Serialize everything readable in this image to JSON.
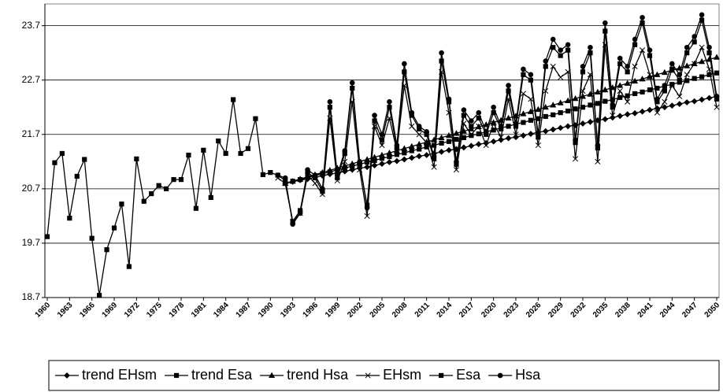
{
  "chart_data": {
    "type": "line",
    "ylim": [
      18.7,
      24.1
    ],
    "yticks": [
      18.7,
      19.7,
      20.7,
      21.7,
      22.7,
      23.7
    ],
    "grid": true,
    "legend": "bottom",
    "categories": [
      "1960",
      null,
      null,
      "1963",
      null,
      null,
      "1966",
      null,
      null,
      "1969",
      null,
      null,
      "1972",
      null,
      null,
      "1975",
      null,
      null,
      "1978",
      null,
      null,
      "1981",
      null,
      null,
      "1984",
      null,
      null,
      "1987",
      null,
      null,
      "1990",
      null,
      null,
      "1993",
      null,
      null,
      "1996",
      null,
      null,
      "1999",
      null,
      null,
      "2002",
      null,
      null,
      "2005",
      null,
      null,
      "2008",
      null,
      null,
      "2011",
      null,
      null,
      "2014",
      null,
      null,
      "2017",
      null,
      null,
      "2020",
      null,
      null,
      "2023",
      null,
      null,
      "2026",
      null,
      null,
      "2029",
      null,
      null,
      "2032",
      null,
      null,
      "2035",
      null,
      null,
      "2038",
      null,
      null,
      "2041",
      null,
      null,
      "2044",
      null,
      null,
      "2047",
      null,
      null,
      "2050"
    ],
    "series": [
      {
        "name": "trend EHsm",
        "color": "#000000",
        "marker": "diamond",
        "values": [
          null,
          null,
          null,
          null,
          null,
          null,
          null,
          null,
          null,
          null,
          null,
          null,
          null,
          null,
          null,
          null,
          null,
          null,
          null,
          null,
          null,
          null,
          null,
          null,
          null,
          null,
          null,
          null,
          null,
          null,
          null,
          null,
          20.8,
          20.83,
          20.86,
          20.88,
          20.91,
          20.94,
          20.97,
          20.99,
          21.02,
          21.05,
          21.08,
          21.1,
          21.13,
          21.16,
          21.19,
          21.21,
          21.24,
          21.27,
          21.3,
          21.32,
          21.35,
          21.38,
          21.41,
          21.43,
          21.46,
          21.49,
          21.52,
          21.54,
          21.57,
          21.6,
          21.63,
          21.65,
          21.68,
          21.71,
          21.74,
          21.76,
          21.79,
          21.82,
          21.85,
          21.87,
          21.9,
          21.93,
          21.96,
          21.98,
          22.01,
          22.04,
          22.07,
          22.09,
          22.12,
          22.15,
          22.18,
          22.2,
          22.23,
          22.26,
          22.29,
          22.31,
          22.34,
          22.37,
          22.4
        ]
      },
      {
        "name": "trend Esa",
        "color": "#000000",
        "marker": "square",
        "values": [
          null,
          null,
          null,
          null,
          null,
          null,
          null,
          null,
          null,
          null,
          null,
          null,
          null,
          null,
          null,
          null,
          null,
          null,
          null,
          null,
          null,
          null,
          null,
          null,
          null,
          null,
          null,
          null,
          null,
          null,
          null,
          null,
          20.8,
          20.84,
          20.87,
          20.91,
          20.94,
          20.98,
          21.01,
          21.05,
          21.08,
          21.12,
          21.15,
          21.19,
          21.22,
          21.26,
          21.29,
          21.33,
          21.36,
          21.4,
          21.43,
          21.47,
          21.5,
          21.54,
          21.57,
          21.61,
          21.64,
          21.68,
          21.71,
          21.75,
          21.78,
          21.82,
          21.85,
          21.89,
          21.92,
          21.96,
          21.99,
          22.03,
          22.06,
          22.1,
          22.13,
          22.17,
          22.2,
          22.24,
          22.27,
          22.31,
          22.34,
          22.38,
          22.41,
          22.45,
          22.48,
          22.52,
          22.55,
          22.59,
          22.62,
          22.66,
          22.69,
          22.73,
          22.76,
          22.8,
          22.83
        ]
      },
      {
        "name": "trend Hsa",
        "color": "#000000",
        "marker": "triangle",
        "values": [
          null,
          null,
          null,
          null,
          null,
          null,
          null,
          null,
          null,
          null,
          null,
          null,
          null,
          null,
          null,
          null,
          null,
          null,
          null,
          null,
          null,
          null,
          null,
          null,
          null,
          null,
          null,
          null,
          null,
          null,
          null,
          null,
          20.8,
          20.84,
          20.88,
          20.92,
          20.96,
          21.0,
          21.04,
          21.08,
          21.12,
          21.16,
          21.2,
          21.24,
          21.28,
          21.32,
          21.36,
          21.4,
          21.44,
          21.48,
          21.52,
          21.56,
          21.6,
          21.64,
          21.68,
          21.72,
          21.76,
          21.8,
          21.84,
          21.88,
          21.92,
          21.96,
          22.0,
          22.04,
          22.08,
          22.12,
          22.16,
          22.2,
          22.24,
          22.28,
          22.32,
          22.36,
          22.4,
          22.44,
          22.48,
          22.52,
          22.56,
          22.6,
          22.64,
          22.68,
          22.72,
          22.76,
          22.8,
          22.84,
          22.88,
          22.92,
          22.96,
          23.0,
          23.04,
          23.08,
          23.12
        ]
      },
      {
        "name": "EHsm",
        "color": "#000000",
        "marker": "x",
        "values": [
          null,
          null,
          null,
          null,
          null,
          null,
          null,
          null,
          null,
          null,
          null,
          null,
          null,
          null,
          null,
          null,
          null,
          null,
          null,
          null,
          null,
          null,
          null,
          null,
          null,
          null,
          null,
          null,
          null,
          null,
          null,
          20.9,
          20.8,
          20.1,
          20.25,
          20.95,
          20.8,
          20.6,
          22.0,
          20.85,
          21.2,
          22.3,
          21.05,
          20.2,
          21.85,
          21.5,
          22.0,
          21.4,
          22.6,
          21.85,
          21.7,
          21.55,
          21.1,
          22.85,
          22.1,
          21.05,
          21.9,
          21.7,
          21.85,
          21.5,
          21.9,
          21.65,
          22.35,
          21.7,
          22.45,
          22.35,
          21.5,
          22.5,
          22.95,
          22.75,
          22.85,
          21.25,
          22.5,
          22.8,
          21.2,
          23.35,
          22.05,
          22.5,
          22.3,
          22.95,
          23.25,
          22.8,
          22.1,
          22.3,
          22.6,
          22.4,
          22.8,
          23.0,
          23.3,
          22.9,
          22.2
        ]
      },
      {
        "name": "Esa",
        "color": "#000000",
        "marker": "square",
        "values": [
          19.82,
          21.18,
          21.35,
          20.16,
          20.93,
          21.24,
          19.79,
          18.74,
          19.58,
          19.98,
          20.42,
          19.27,
          21.25,
          20.47,
          20.61,
          20.76,
          20.7,
          20.87,
          20.87,
          21.32,
          20.34,
          21.41,
          20.54,
          21.58,
          21.35,
          22.34,
          21.35,
          21.44,
          21.99,
          20.96,
          21.0,
          20.95,
          20.85,
          20.1,
          20.3,
          21.0,
          20.9,
          20.65,
          22.2,
          20.9,
          21.35,
          22.55,
          21.15,
          20.4,
          21.95,
          21.6,
          22.2,
          21.45,
          22.85,
          22.05,
          21.8,
          21.7,
          21.25,
          23.05,
          22.3,
          21.15,
          22.05,
          21.85,
          22.0,
          21.7,
          22.1,
          21.8,
          22.5,
          21.85,
          22.8,
          22.7,
          21.65,
          22.95,
          23.3,
          23.15,
          23.25,
          21.55,
          22.85,
          23.2,
          21.45,
          23.6,
          22.2,
          23.0,
          22.85,
          23.35,
          23.75,
          23.15,
          22.3,
          22.5,
          22.9,
          22.7,
          23.2,
          23.4,
          23.8,
          23.2,
          22.35
        ]
      },
      {
        "name": "Hsa",
        "color": "#000000",
        "marker": "circle",
        "values": [
          null,
          null,
          null,
          null,
          null,
          null,
          null,
          null,
          null,
          null,
          null,
          null,
          null,
          null,
          null,
          null,
          null,
          null,
          null,
          null,
          null,
          null,
          null,
          null,
          null,
          null,
          null,
          null,
          null,
          null,
          null,
          20.95,
          20.9,
          20.05,
          20.25,
          21.05,
          20.95,
          20.7,
          22.3,
          20.95,
          21.4,
          22.65,
          21.2,
          20.35,
          22.05,
          21.7,
          22.3,
          21.5,
          23.0,
          22.1,
          21.85,
          21.75,
          21.3,
          23.2,
          22.35,
          21.2,
          22.15,
          21.95,
          22.1,
          21.75,
          22.2,
          21.85,
          22.6,
          21.9,
          22.9,
          22.8,
          21.7,
          23.05,
          23.45,
          23.25,
          23.35,
          21.6,
          22.95,
          23.3,
          21.5,
          23.75,
          22.25,
          23.1,
          22.95,
          23.45,
          23.85,
          23.25,
          22.35,
          22.6,
          23.0,
          22.8,
          23.3,
          23.5,
          23.9,
          23.3,
          22.4
        ]
      }
    ]
  }
}
